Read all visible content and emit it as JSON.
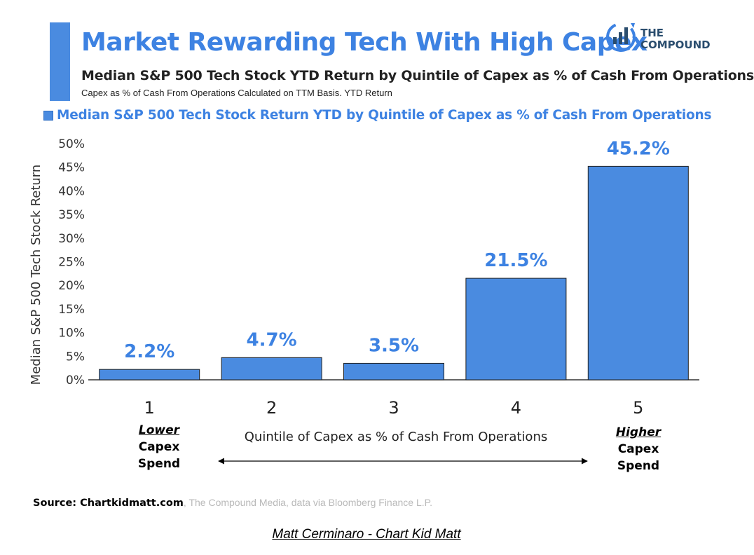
{
  "header": {
    "title": "Market Rewarding Tech With High Capex",
    "subtitle": "Median S&P 500 Tech Stock YTD Return by Quintile of Capex as % of Cash From Operations",
    "note": "Capex as % of Cash From Operations Calculated on TTM Basis. YTD Return"
  },
  "logo": {
    "line1": "THE",
    "line2": "COMPOUND"
  },
  "colors": {
    "accent": "#4a8be0",
    "title": "#3d82e2",
    "bar": "#4a8be0",
    "bar_border": "#1f1f1f"
  },
  "chart_data": {
    "type": "bar",
    "title": "Market Rewarding Tech With High Capex",
    "legend": "Median S&P 500 Tech Stock Return YTD by Quintile of Capex as % of Cash From Operations",
    "categories": [
      "1",
      "2",
      "3",
      "4",
      "5"
    ],
    "values": [
      2.2,
      4.7,
      3.5,
      21.5,
      45.2
    ],
    "data_labels": [
      "2.2%",
      "4.7%",
      "3.5%",
      "21.5%",
      "45.2%"
    ],
    "ylim": [
      0,
      50
    ],
    "yticks": [
      "0%",
      "5%",
      "10%",
      "15%",
      "20%",
      "25%",
      "30%",
      "35%",
      "40%",
      "45%",
      "50%"
    ],
    "ylabel": "Median S&P 500 Tech Stock Return",
    "xlabel": "Quintile of Capex as % of Cash From Operations",
    "grid": false
  },
  "annotations": {
    "low": {
      "emph": "Lower",
      "line2": "Capex",
      "line3": "Spend"
    },
    "high": {
      "emph": "Higher",
      "line2": "Capex",
      "line3": "Spend"
    }
  },
  "footer": {
    "source_bold": "Source: Chartkidmatt.com",
    "source_rest": ", The Compound Media, data via Bloomberg Finance L.P.",
    "credit": "Matt Cerminaro - Chart Kid Matt"
  }
}
